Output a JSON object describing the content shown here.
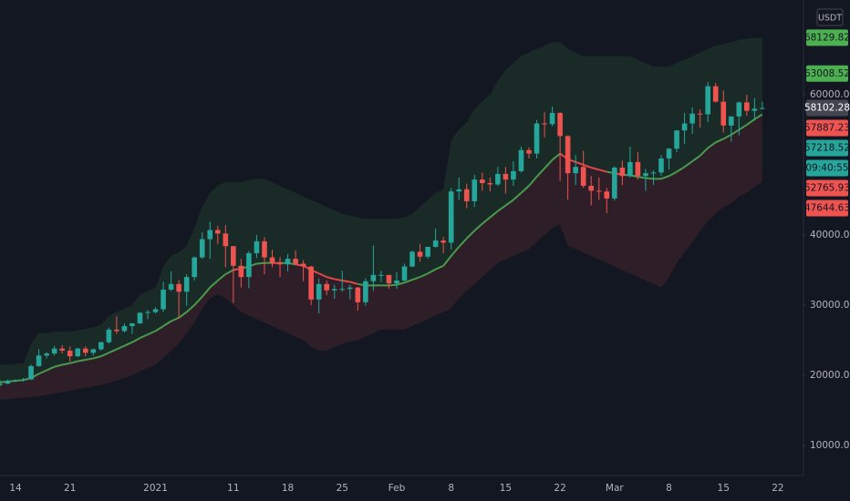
{
  "chart_data": {
    "type": "candlestick",
    "currency": "USDT",
    "up_color": "#26a69a",
    "down_color": "#ef5350",
    "ylim": [
      5700,
      73500
    ],
    "yticks": [
      {
        "value": 10000,
        "label": "10000.00"
      },
      {
        "value": 20000,
        "label": "20000.00"
      },
      {
        "value": 30000,
        "label": "30000.00"
      },
      {
        "value": 40000,
        "label": "40000.00"
      },
      {
        "value": 60000,
        "label": "60000.00"
      }
    ],
    "grid": false,
    "categories": [
      null,
      null,
      "14",
      null,
      null,
      null,
      null,
      null,
      null,
      "21",
      null,
      null,
      null,
      null,
      null,
      null,
      null,
      null,
      null,
      null,
      "2021",
      null,
      null,
      null,
      null,
      null,
      null,
      null,
      null,
      null,
      "11",
      null,
      null,
      null,
      null,
      null,
      null,
      "18",
      null,
      null,
      null,
      null,
      null,
      null,
      "25",
      null,
      null,
      null,
      null,
      null,
      null,
      "Feb",
      null,
      null,
      null,
      null,
      null,
      null,
      "8",
      null,
      null,
      null,
      null,
      null,
      null,
      "15",
      null,
      null,
      null,
      null,
      null,
      null,
      "22",
      null,
      null,
      null,
      null,
      null,
      null,
      "Mar",
      null,
      null,
      null,
      null,
      null,
      null,
      "8",
      null,
      null,
      null,
      null,
      null,
      null,
      "15",
      null,
      null,
      null,
      null,
      null,
      null,
      "22"
    ],
    "ohlc": [
      [
        18600,
        19300,
        18400,
        18800
      ],
      [
        18800,
        19400,
        18700,
        19200
      ],
      [
        19200,
        19400,
        19000,
        19300
      ],
      [
        19300,
        19600,
        19100,
        19400
      ],
      [
        19400,
        21500,
        19300,
        21300
      ],
      [
        21300,
        23700,
        21200,
        22800
      ],
      [
        22800,
        23300,
        22400,
        23100
      ],
      [
        23100,
        24200,
        22800,
        23800
      ],
      [
        23800,
        24300,
        23100,
        23500
      ],
      [
        23500,
        24100,
        21900,
        22700
      ],
      [
        22700,
        23900,
        22600,
        23800
      ],
      [
        23800,
        24100,
        22700,
        23200
      ],
      [
        23200,
        23800,
        22800,
        23700
      ],
      [
        23700,
        24800,
        23500,
        24700
      ],
      [
        24700,
        26800,
        24500,
        26500
      ],
      [
        26500,
        28400,
        25900,
        26300
      ],
      [
        26300,
        27400,
        26100,
        27000
      ],
      [
        27000,
        27400,
        25900,
        27400
      ],
      [
        27400,
        29000,
        27300,
        28900
      ],
      [
        28900,
        29300,
        28000,
        29000
      ],
      [
        29000,
        29700,
        28800,
        29400
      ],
      [
        29400,
        33300,
        29000,
        32200
      ],
      [
        32200,
        34800,
        32000,
        33000
      ],
      [
        33000,
        33600,
        28100,
        31900
      ],
      [
        31900,
        34400,
        29900,
        34000
      ],
      [
        34000,
        36900,
        33500,
        36800
      ],
      [
        36800,
        40400,
        36600,
        39400
      ],
      [
        39400,
        41900,
        36600,
        40700
      ],
      [
        40700,
        41300,
        38700,
        40200
      ],
      [
        40200,
        41400,
        35400,
        38400
      ],
      [
        38400,
        38400,
        30300,
        35600
      ],
      [
        35600,
        36600,
        32500,
        34000
      ],
      [
        34000,
        37700,
        32400,
        37400
      ],
      [
        37400,
        40000,
        36700,
        39100
      ],
      [
        39100,
        39700,
        34400,
        36800
      ],
      [
        36800,
        37900,
        35400,
        36000
      ],
      [
        36000,
        36800,
        34000,
        35800
      ],
      [
        35800,
        37300,
        34800,
        36600
      ],
      [
        36600,
        37800,
        35800,
        35900
      ],
      [
        35900,
        36400,
        33400,
        35500
      ],
      [
        35500,
        35600,
        30000,
        30800
      ],
      [
        30800,
        33800,
        28800,
        33000
      ],
      [
        33000,
        33500,
        31400,
        32100
      ],
      [
        32100,
        32900,
        30900,
        32300
      ],
      [
        32300,
        34900,
        31900,
        32300
      ],
      [
        32300,
        32900,
        30800,
        32500
      ],
      [
        32500,
        32600,
        29200,
        30400
      ],
      [
        30400,
        33800,
        29900,
        33400
      ],
      [
        33400,
        38500,
        32000,
        34300
      ],
      [
        34300,
        34900,
        33300,
        34300
      ],
      [
        34300,
        34300,
        32300,
        33100
      ],
      [
        33100,
        34700,
        32300,
        33500
      ],
      [
        33500,
        35900,
        33400,
        35500
      ],
      [
        35500,
        37800,
        35400,
        37600
      ],
      [
        37600,
        38700,
        36200,
        36900
      ],
      [
        36900,
        38300,
        36600,
        38300
      ],
      [
        38300,
        40900,
        38200,
        39200
      ],
      [
        39200,
        39700,
        37400,
        38900
      ],
      [
        38900,
        46700,
        37900,
        46200
      ],
      [
        46200,
        48200,
        45000,
        46500
      ],
      [
        46500,
        47300,
        43800,
        44800
      ],
      [
        44800,
        48600,
        44000,
        47900
      ],
      [
        47900,
        48900,
        46300,
        47400
      ],
      [
        47400,
        48200,
        46200,
        47200
      ],
      [
        47200,
        49700,
        47000,
        48700
      ],
      [
        48700,
        49700,
        45900,
        47900
      ],
      [
        47900,
        50500,
        47000,
        49100
      ],
      [
        49100,
        52600,
        48900,
        52100
      ],
      [
        52100,
        52500,
        50900,
        51600
      ],
      [
        51600,
        56400,
        50900,
        55900
      ],
      [
        55900,
        57500,
        53900,
        55800
      ],
      [
        55800,
        58300,
        55500,
        57400
      ],
      [
        57400,
        57500,
        47700,
        54100
      ],
      [
        54100,
        54200,
        45000,
        48800
      ],
      [
        48800,
        51400,
        47100,
        49700
      ],
      [
        49700,
        52000,
        46700,
        47000
      ],
      [
        47000,
        48400,
        44200,
        46300
      ],
      [
        46300,
        48200,
        45000,
        46200
      ],
      [
        46200,
        46700,
        43100,
        45200
      ],
      [
        45200,
        49800,
        44900,
        49600
      ],
      [
        49600,
        50600,
        47100,
        48400
      ],
      [
        48400,
        52600,
        48200,
        50400
      ],
      [
        50400,
        51800,
        47900,
        48400
      ],
      [
        48400,
        49400,
        46300,
        48800
      ],
      [
        48800,
        49200,
        47100,
        48900
      ],
      [
        48900,
        51400,
        48400,
        50900
      ],
      [
        50900,
        52400,
        49300,
        52300
      ],
      [
        52300,
        54900,
        51800,
        54900
      ],
      [
        54900,
        57400,
        53000,
        55900
      ],
      [
        55900,
        58200,
        54400,
        57300
      ],
      [
        57300,
        57900,
        55300,
        57200
      ],
      [
        57200,
        61800,
        56100,
        61200
      ],
      [
        61200,
        61700,
        58900,
        59000
      ],
      [
        59000,
        60600,
        54600,
        55600
      ],
      [
        55600,
        56900,
        53300,
        56900
      ],
      [
        56900,
        59000,
        54200,
        58900
      ],
      [
        58900,
        60000,
        57000,
        57700
      ],
      [
        57700,
        59500,
        56300,
        58000
      ],
      [
        58000,
        59000,
        57900,
        58100
      ],
      null,
      null
    ],
    "upper": {
      "color": "rgba(76,175,80,0.13)",
      "values": [
        21500,
        21500,
        21600,
        21700,
        24500,
        26000,
        26000,
        26200,
        26200,
        26200,
        26400,
        26600,
        26800,
        27200,
        28500,
        29000,
        29500,
        30000,
        31500,
        32000,
        32500,
        35500,
        37000,
        37500,
        38500,
        41000,
        44000,
        46000,
        47000,
        47500,
        47500,
        47500,
        47800,
        48000,
        48000,
        47500,
        47000,
        46500,
        46000,
        45500,
        45000,
        44500,
        44000,
        43500,
        43000,
        42800,
        42500,
        42300,
        42300,
        42300,
        42300,
        42300,
        42500,
        43000,
        44000,
        45000,
        46000,
        46500,
        53500,
        55000,
        56000,
        58000,
        59000,
        60000,
        62000,
        63500,
        64500,
        65500,
        66000,
        66500,
        67000,
        67500,
        67500,
        66500,
        66000,
        65500,
        65500,
        65500,
        65500,
        65500,
        65500,
        65500,
        65000,
        64500,
        64000,
        64000,
        64000,
        64500,
        65000,
        65500,
        66000,
        66500,
        67000,
        67200,
        67500,
        67800,
        68000,
        68100,
        68100,
        null,
        null
      ]
    },
    "line": {
      "up_color": "#4a9a4e",
      "down_color": "#e04848",
      "values": [
        19000,
        19100,
        19200,
        19300,
        19600,
        20200,
        20700,
        21200,
        21500,
        21700,
        22000,
        22200,
        22400,
        22700,
        23200,
        23700,
        24200,
        24700,
        25300,
        25800,
        26300,
        27000,
        27700,
        28200,
        29000,
        30000,
        31200,
        32500,
        33500,
        34400,
        35000,
        35200,
        35500,
        35900,
        36000,
        36000,
        36000,
        36000,
        35800,
        35600,
        35000,
        34500,
        34000,
        33700,
        33500,
        33300,
        33000,
        32800,
        32800,
        32800,
        32800,
        32900,
        33200,
        33600,
        34000,
        34500,
        35100,
        35600,
        37000,
        38300,
        39500,
        40600,
        41600,
        42500,
        43400,
        44200,
        45000,
        46000,
        47000,
        48300,
        49500,
        50700,
        51600,
        50800,
        50400,
        50000,
        49600,
        49300,
        49000,
        48800,
        48600,
        48500,
        48300,
        48100,
        48000,
        48000,
        48400,
        49000,
        49700,
        50500,
        51300,
        52400,
        53200,
        53700,
        54300,
        55000,
        55700,
        56500,
        57200,
        null,
        null
      ]
    },
    "lower": {
      "color": "rgba(239,83,80,0.12)",
      "values": [
        16500,
        16600,
        16700,
        16800,
        16900,
        17000,
        17200,
        17400,
        17600,
        17800,
        18000,
        18200,
        18400,
        18600,
        18900,
        19200,
        19600,
        20000,
        20500,
        21000,
        21500,
        22500,
        23500,
        24500,
        26000,
        27500,
        29500,
        31000,
        31500,
        31000,
        30000,
        29000,
        28500,
        28000,
        27500,
        27000,
        26500,
        26000,
        25500,
        25000,
        24000,
        23500,
        23500,
        24000,
        24500,
        24800,
        25000,
        25500,
        26000,
        26500,
        26500,
        26500,
        26500,
        27000,
        27500,
        28000,
        28500,
        29000,
        29500,
        31000,
        32000,
        33000,
        34000,
        35000,
        36000,
        36500,
        37000,
        37500,
        38000,
        39000,
        40000,
        41000,
        41500,
        38500,
        38000,
        37500,
        37000,
        36500,
        36000,
        35500,
        35000,
        34500,
        34000,
        33500,
        33000,
        32500,
        34000,
        36000,
        37500,
        39000,
        40500,
        42000,
        43000,
        44000,
        44500,
        45500,
        46000,
        46800,
        47600,
        null,
        null
      ]
    },
    "price_labels": {
      "values": [
        68129.82,
        63008.52,
        58102.28,
        57887.23,
        57218.52,
        52765.93,
        47644.63
      ],
      "colors": [
        "#4caf50",
        "#4caf50",
        "#434651",
        "#ef5350",
        "#26a69a",
        "#ef5350",
        "#ef5350"
      ],
      "text_colors": [
        "#131722",
        "#131722",
        "#ffffff",
        "#131722",
        "#131722",
        "#131722",
        "#131722"
      ]
    },
    "countdown": "09:40:55",
    "countdown_after": 4
  }
}
